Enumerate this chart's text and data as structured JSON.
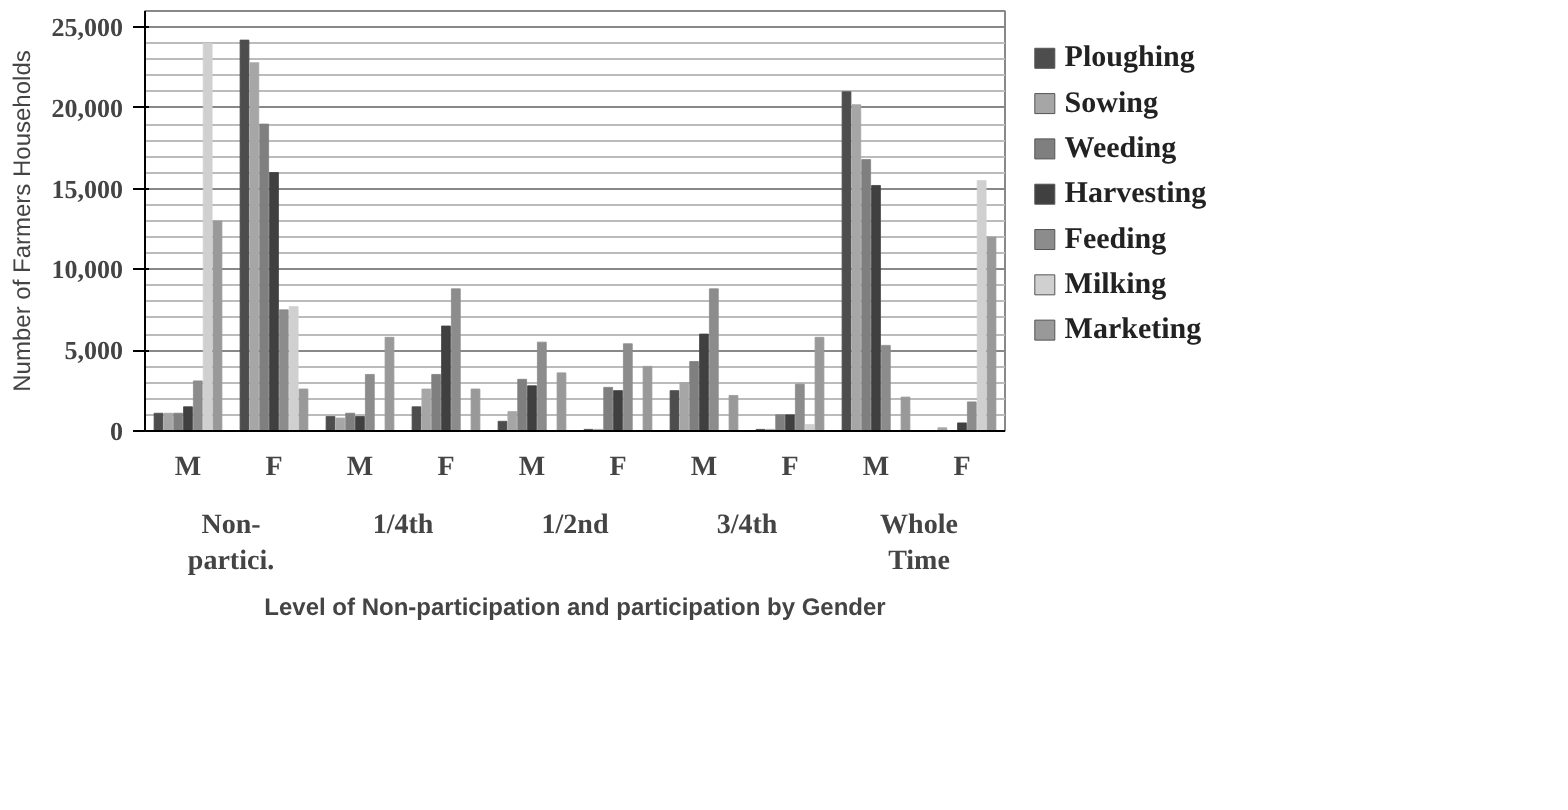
{
  "chart_data": {
    "type": "bar",
    "ylabel": "Number of Farmers Households",
    "xlabel": "Level of Non-participation and participation by Gender",
    "categories": [
      "M",
      "F",
      "M",
      "F",
      "M",
      "F",
      "M",
      "F",
      "M",
      "F"
    ],
    "annotations": [
      "Non-\npartici.",
      "1/4th",
      "1/2nd",
      "3/4th",
      "Whole\nTime"
    ],
    "series": [
      {
        "name": "Ploughing",
        "color": "#4d4d4d",
        "values": [
          1100,
          24200,
          900,
          1500,
          600,
          100,
          2500,
          100,
          21000,
          0
        ]
      },
      {
        "name": "Sowing",
        "color": "#a6a6a6",
        "values": [
          1100,
          22800,
          800,
          2600,
          1200,
          100,
          3000,
          100,
          20200,
          200
        ]
      },
      {
        "name": "Weeding",
        "color": "#7f7f7f",
        "values": [
          1100,
          19000,
          1100,
          3500,
          3200,
          2700,
          4300,
          1000,
          16800,
          0
        ]
      },
      {
        "name": "Harvesting",
        "color": "#404040",
        "values": [
          1500,
          16000,
          900,
          6500,
          2800,
          2500,
          6000,
          1000,
          15200,
          500
        ]
      },
      {
        "name": "Feeding",
        "color": "#8c8c8c",
        "values": [
          3100,
          7500,
          3500,
          8800,
          5500,
          5400,
          8800,
          2900,
          5300,
          1800
        ]
      },
      {
        "name": "Milking",
        "color": "#d0d0d0",
        "values": [
          24000,
          7700,
          0,
          0,
          0,
          0,
          0,
          400,
          0,
          15500
        ]
      },
      {
        "name": "Marketing",
        "color": "#999999",
        "values": [
          13000,
          2600,
          5800,
          2600,
          3600,
          4000,
          2200,
          5800,
          2100,
          12000
        ]
      }
    ],
    "ylim": [
      0,
      26000
    ],
    "yticks": [
      {
        "value": 0,
        "label": "0"
      },
      {
        "value": 5000,
        "label": "5,000"
      },
      {
        "value": 10000,
        "label": "10,000"
      },
      {
        "value": 15000,
        "label": "15,000"
      },
      {
        "value": 20000,
        "label": "20,000"
      },
      {
        "value": 25000,
        "label": "25,000"
      }
    ],
    "grid": "y",
    "legend": "right"
  }
}
